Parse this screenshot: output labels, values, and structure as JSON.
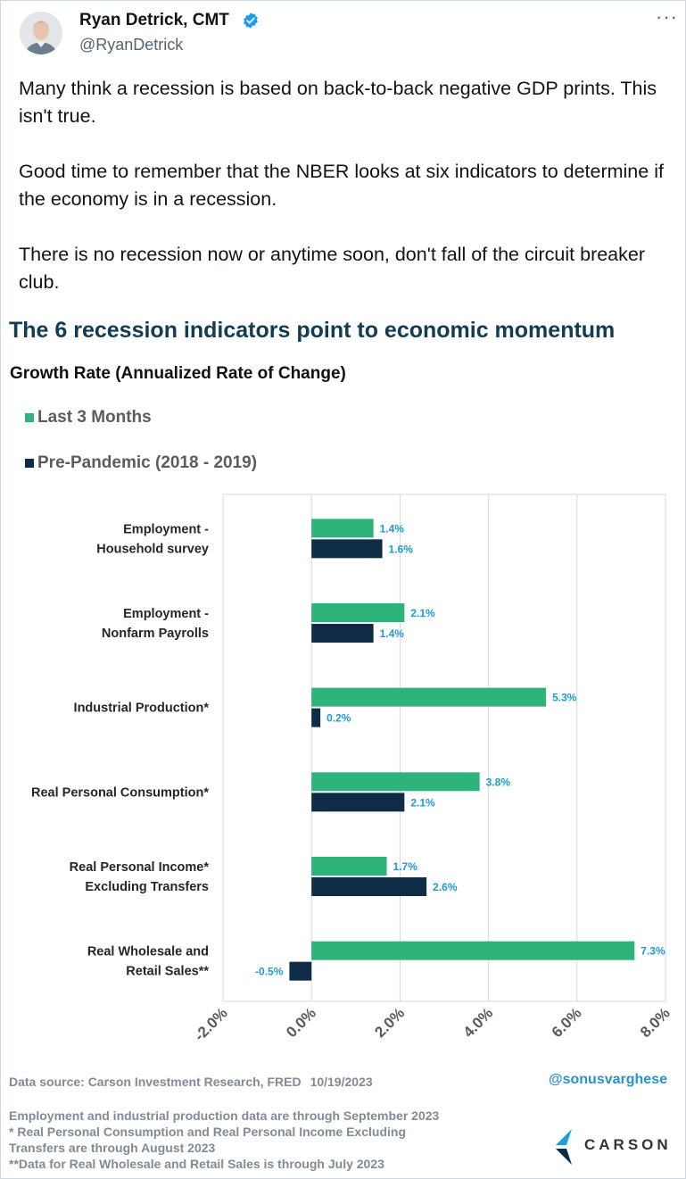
{
  "tweet": {
    "author_name": "Ryan Detrick, CMT",
    "handle": "@RyanDetrick",
    "text": "Many think a recession is based on back-to-back negative GDP prints. This isn't true.\n\nGood time to remember that the NBER looks at six indicators to determine if the economy is in a recession.\n\nThere is no recession now or anytime soon, don't fall of the circuit breaker club."
  },
  "icons": {
    "avatar": "avatar-photo",
    "verified": "verified-badge-icon",
    "more": "more-options-icon",
    "logo": "carson-logo-icon"
  },
  "colors": {
    "green": "#2eb47b",
    "navy": "#0f2c47",
    "label_blue": "#1e9ad6",
    "title_navy": "#123b54",
    "verified_blue": "#1d9bf0"
  },
  "infographic": {
    "title": "The 6 recession indicators point to economic momentum",
    "subtitle": "Growth Rate (Annualized Rate of Change)",
    "data_source": "Data source: Carson Investment Research, FRED",
    "date": "10/19/2023",
    "handle": "@sonusvarghese",
    "notes": "Employment and industrial production data are through September 2023\n* Real Personal Consumption and Real Personal Income Excluding\nTransfers are through August 2023\n**Data for Real Wholesale and Retail Sales is through July 2023",
    "logo_text": "CARSON"
  },
  "chart_data": {
    "type": "bar",
    "orientation": "horizontal",
    "categories": [
      "Employment -\nHousehold survey",
      "Employment -\nNonfarm Payrolls",
      "Industrial Production*",
      "Real Personal Consumption*",
      "Real Personal Income*\nExcluding Transfers",
      "Real Wholesale and\nRetail Sales**"
    ],
    "series": [
      {
        "name": "Last 3 Months",
        "color": "#2eb47b",
        "values": [
          1.4,
          2.1,
          5.3,
          3.8,
          1.7,
          7.3
        ],
        "labels": [
          "1.4%",
          "2.1%",
          "5.3%",
          "3.8%",
          "1.7%",
          "7.3%"
        ]
      },
      {
        "name": "Pre-Pandemic (2018 - 2019)",
        "color": "#0f2c47",
        "values": [
          1.6,
          1.4,
          0.2,
          2.1,
          2.6,
          -0.5
        ],
        "labels": [
          "1.6%",
          "1.4%",
          "0.2%",
          "2.1%",
          "2.6%",
          "-0.5%"
        ]
      }
    ],
    "xlim": [
      -2.0,
      8.0
    ],
    "xticks": [
      -2.0,
      0.0,
      2.0,
      4.0,
      6.0,
      8.0
    ],
    "xtick_labels": [
      "-2.0%",
      "0.0%",
      "2.0%",
      "4.0%",
      "6.0%",
      "8.0%"
    ],
    "grid": true,
    "legend": "top-left"
  }
}
